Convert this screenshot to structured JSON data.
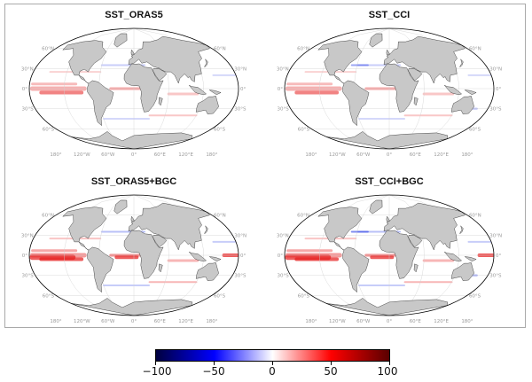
{
  "panels": [
    {
      "title": "SST_ORAS5"
    },
    {
      "title": "SST_CCI"
    },
    {
      "title": "SST_ORAS5+BGC"
    },
    {
      "title": "SST_CCI+BGC"
    }
  ],
  "map_labels": {
    "lat_left": [
      "60°N",
      "30°N",
      "0°",
      "30°S",
      "60°S"
    ],
    "lat_right": [
      "60°N",
      "30°N",
      "0°",
      "30°S",
      "60°S"
    ],
    "lon": [
      "180°",
      "120°W",
      "60°W",
      "0°",
      "60°E",
      "120°E",
      "180°"
    ]
  },
  "colorbar": {
    "ticks": [
      -100,
      -50,
      0,
      50,
      100
    ],
    "tick_labels": [
      "−100",
      "−50",
      "0",
      "50",
      "100"
    ],
    "range": [
      -100,
      100
    ],
    "colors": [
      "#00003f",
      "#0000ff",
      "#ffffff",
      "#ff0000",
      "#5a0000"
    ]
  },
  "colors": {
    "land": "#c8c8c8",
    "ocean": "#ffffff",
    "coast": "#222222",
    "grid": "#d0d0d0"
  }
}
